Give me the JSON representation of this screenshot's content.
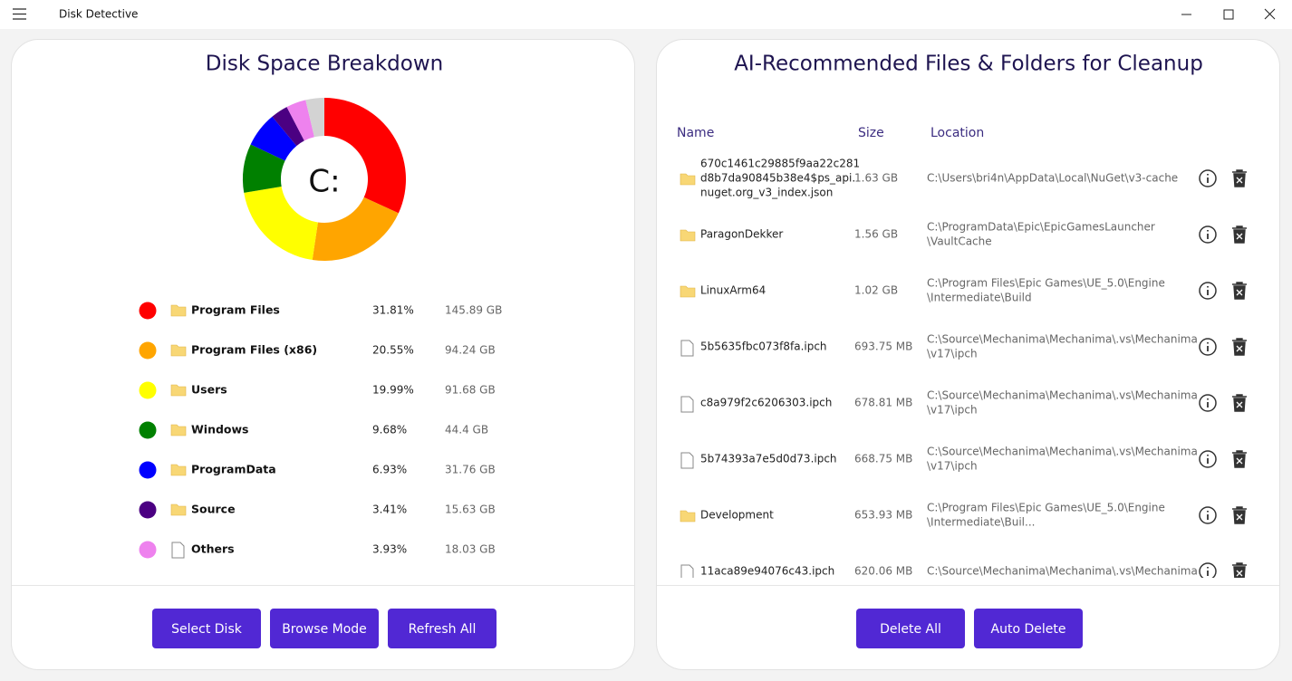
{
  "window": {
    "title": "Disk Detective"
  },
  "left_panel": {
    "title": "Disk Space Breakdown",
    "chart_data": {
      "type": "donut",
      "center_label": "C:",
      "categories": [
        "Program Files",
        "Program Files (x86)",
        "Users",
        "Windows",
        "ProgramData",
        "Source",
        "Others",
        null
      ],
      "values": [
        31.81,
        20.55,
        19.99,
        9.68,
        6.93,
        3.41,
        3.93,
        3.7
      ],
      "value_labels": [
        "31.81%",
        "20.55%",
        "19.99%",
        "9.68%",
        "6.93%",
        "3.41%",
        "3.93%",
        null
      ],
      "sizes": [
        "145.89 GB",
        "94.24 GB",
        "91.68 GB",
        "44.4 GB",
        "31.76 GB",
        "15.63 GB",
        "18.03 GB",
        null
      ],
      "icons": [
        "folder",
        "folder",
        "folder",
        "folder",
        "folder",
        "folder",
        "file",
        null
      ],
      "colors": [
        "#ff0000",
        "#ffa500",
        "#ffff00",
        "#008000",
        "#0000ff",
        "#4b0082",
        "#ee82ee",
        "#d3d3d3"
      ]
    },
    "buttons": [
      "Select Disk",
      "Browse Mode",
      "Refresh All"
    ]
  },
  "right_panel": {
    "title": "AI-Recommended Files & Folders for Cleanup",
    "columns": [
      "Name",
      "Size",
      "Location"
    ],
    "rows": [
      {
        "icon": "folder",
        "name": [
          "670c1461c29885f9aa22c281",
          "d8b7da90845b38e4$ps_api.",
          "nuget.org_v3_index.json"
        ],
        "size": "1.63 GB",
        "location": [
          "C:\\Users\\bri4n\\AppData\\Local\\NuGet\\v3-cache"
        ]
      },
      {
        "icon": "folder",
        "name": [
          "ParagonDekker"
        ],
        "size": "1.56 GB",
        "location": [
          "C:\\ProgramData\\Epic\\EpicGamesLauncher",
          "\\VaultCache"
        ]
      },
      {
        "icon": "folder",
        "name": [
          "LinuxArm64"
        ],
        "size": "1.02 GB",
        "location": [
          "C:\\Program Files\\Epic Games\\UE_5.0\\Engine",
          "\\Intermediate\\Build"
        ]
      },
      {
        "icon": "file",
        "name": [
          "5b5635fbc073f8fa.ipch"
        ],
        "size": "693.75 MB",
        "location": [
          "C:\\Source\\Mechanima\\Mechanima\\.vs\\Mechanima",
          "\\v17\\ipch"
        ]
      },
      {
        "icon": "file",
        "name": [
          "c8a979f2c6206303.ipch"
        ],
        "size": "678.81 MB",
        "location": [
          "C:\\Source\\Mechanima\\Mechanima\\.vs\\Mechanima",
          "\\v17\\ipch"
        ]
      },
      {
        "icon": "file",
        "name": [
          "5b74393a7e5d0d73.ipch"
        ],
        "size": "668.75 MB",
        "location": [
          "C:\\Source\\Mechanima\\Mechanima\\.vs\\Mechanima",
          "\\v17\\ipch"
        ]
      },
      {
        "icon": "folder",
        "name": [
          "Development"
        ],
        "size": "653.93 MB",
        "location": [
          "C:\\Program Files\\Epic Games\\UE_5.0\\Engine",
          "\\Intermediate\\Buil..."
        ]
      },
      {
        "icon": "file",
        "name": [
          "11aca89e94076c43.ipch"
        ],
        "size": "620.06 MB",
        "location": [
          "C:\\Source\\Mechanima\\Mechanima\\.vs\\Mechanima"
        ]
      }
    ],
    "buttons": [
      "Delete All",
      "Auto Delete"
    ]
  }
}
